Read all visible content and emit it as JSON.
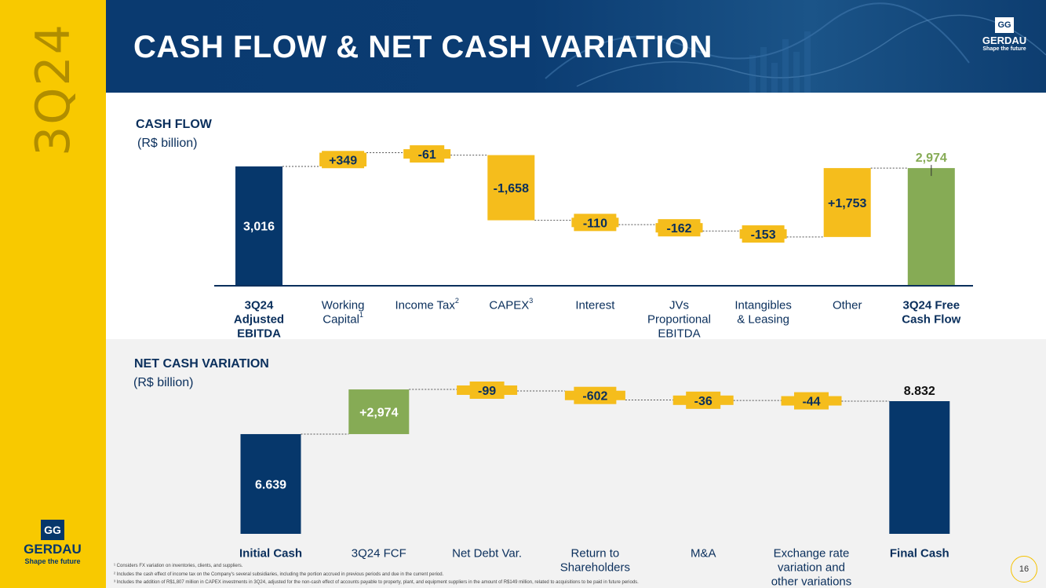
{
  "header": {
    "quarter": "3Q24",
    "title": "CASH FLOW & NET CASH VARIATION",
    "logo_name": "GERDAU",
    "logo_tagline": "Shape the future"
  },
  "sidebar": {
    "logo_name": "GERDAU",
    "logo_tagline": "Shape the future"
  },
  "footnotes": [
    "¹ Considers FX variation on inventories, clients, and suppliers.",
    "² Includes the cash effect of income tax on the Company's several subsidiaries, including the portion accrued in previous periods and due in the current period.",
    "³ Includes the addition of R$1,807 million in CAPEX investments in 3Q24, adjusted for the non-cash effect of accounts payable to property, plant, and equipment suppliers in the amount of R$149 million, related to acquisitions to be paid in future periods."
  ],
  "page_number": "16",
  "colors": {
    "navy": "#06376b",
    "yellow": "#f5bd1c",
    "green": "#86ab55",
    "text": "#0a2f5c"
  },
  "chart_data": [
    {
      "type": "bar",
      "title": "CASH FLOW",
      "unit": "(R$ billion)",
      "categories": [
        [
          "3Q24",
          "Adjusted",
          "EBITDA"
        ],
        [
          "Working",
          "Capital"
        ],
        [
          "Income Tax"
        ],
        [
          "CAPEX"
        ],
        [
          "Interest"
        ],
        [
          "JVs",
          "Proportional",
          "EBITDA"
        ],
        [
          "Intangibles",
          "& Leasing"
        ],
        [
          "Other"
        ],
        [
          "3Q24 Free",
          "Cash Flow"
        ]
      ],
      "superscripts": [
        "",
        "1",
        "2",
        "3",
        "",
        "",
        "",
        "",
        ""
      ],
      "bold_categories": [
        0,
        8
      ],
      "kinds": [
        "total",
        "delta",
        "delta",
        "delta",
        "delta",
        "delta",
        "delta",
        "delta",
        "total"
      ],
      "values": [
        3016,
        349,
        -61,
        -1658,
        -110,
        -162,
        -153,
        1753,
        2974
      ],
      "labels": [
        "3,016",
        "+349",
        "-61",
        "-1,658",
        "-110",
        "-162",
        "-153",
        "+1,753",
        "2,974"
      ],
      "colors": [
        "#06376b",
        "#f5bd1c",
        "#f5bd1c",
        "#f5bd1c",
        "#f5bd1c",
        "#f5bd1c",
        "#f5bd1c",
        "#f5bd1c",
        "#86ab55"
      ]
    },
    {
      "type": "bar",
      "title": "NET CASH VARIATION",
      "unit": "(R$ billion)",
      "categories": [
        [
          "Initial Cash"
        ],
        [
          "3Q24 FCF"
        ],
        [
          "Net Debt Var."
        ],
        [
          "Return to",
          "Shareholders"
        ],
        [
          "M&A"
        ],
        [
          "Exchange rate",
          "variation and",
          "other variations"
        ],
        [
          "Final Cash"
        ]
      ],
      "superscripts": [
        "",
        "",
        "",
        "",
        "",
        "",
        ""
      ],
      "bold_categories": [
        0,
        6
      ],
      "kinds": [
        "total",
        "delta",
        "delta",
        "delta",
        "delta",
        "delta",
        "total"
      ],
      "values": [
        6639,
        2974,
        -99,
        -602,
        -36,
        -44,
        8832
      ],
      "labels": [
        "6.639",
        "+2,974",
        "-99",
        "-602",
        "-36",
        "-44",
        "8.832"
      ],
      "colors": [
        "#06376b",
        "#86ab55",
        "#f5bd1c",
        "#f5bd1c",
        "#f5bd1c",
        "#f5bd1c",
        "#06376b"
      ]
    }
  ]
}
